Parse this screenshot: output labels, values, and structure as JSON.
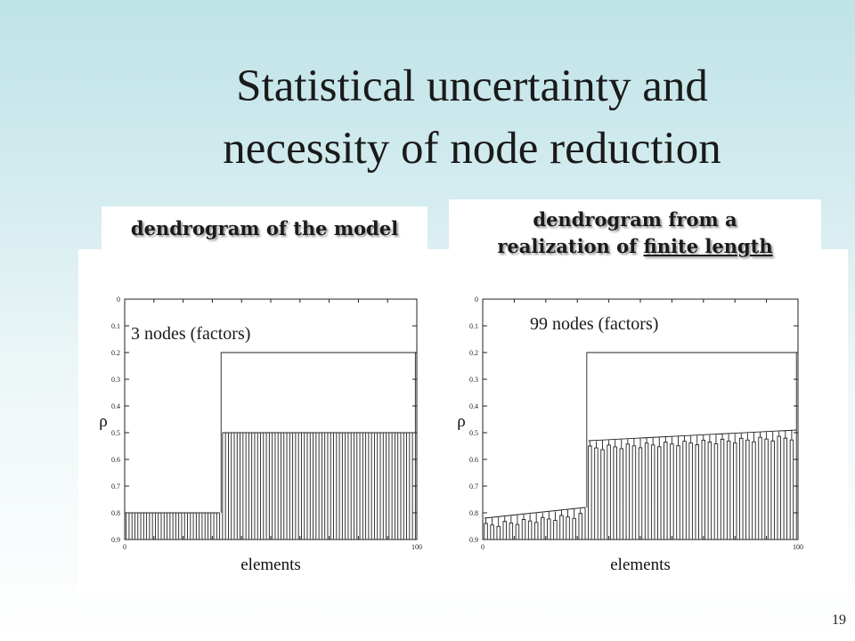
{
  "slide": {
    "title_line1": "Statistical uncertainty and",
    "title_line2": "necessity of node reduction",
    "page_number": "19"
  },
  "panels": {
    "left": {
      "label": "dendrogram of the model",
      "annotation": "3 nodes (factors)"
    },
    "right": {
      "label_line1": "dendrogram from a",
      "label_line2_plain": "realization of ",
      "label_line2_underlined": "finite length",
      "annotation": "99 nodes (factors)"
    }
  },
  "chart_data": [
    {
      "type": "dendrogram",
      "ylabel": "ρ",
      "xlabel": "elements",
      "xlim": [
        0,
        100
      ],
      "ylim": [
        0,
        0.9
      ],
      "y_inverted": true,
      "x_ticks": [
        "0",
        "100"
      ],
      "y_ticks": [
        "0",
        "0.1",
        "0.2",
        "0.3",
        "0.4",
        "0.5",
        "0.6",
        "0.7",
        "0.8",
        "0.9"
      ],
      "clusters": [
        {
          "x_start": 0,
          "x_end": 33,
          "merge_level": 0.8
        },
        {
          "x_start": 33,
          "x_end": 100,
          "merge_level": 0.5
        }
      ],
      "top_merge_level": 0.2,
      "leaf_count": 100
    },
    {
      "type": "dendrogram",
      "ylabel": "ρ",
      "xlabel": "elements",
      "xlim": [
        0,
        100
      ],
      "ylim": [
        0,
        0.9
      ],
      "y_inverted": true,
      "x_ticks": [
        "0",
        "100"
      ],
      "y_ticks": [
        "0",
        "0.1",
        "0.2",
        "0.3",
        "0.4",
        "0.5",
        "0.6",
        "0.7",
        "0.8",
        "0.9"
      ],
      "clusters": [
        {
          "x_start": 0,
          "x_end": 33,
          "merge_level_start": 0.82,
          "merge_level_end": 0.78
        },
        {
          "x_start": 33,
          "x_end": 100,
          "merge_level_start": 0.53,
          "merge_level_end": 0.49
        }
      ],
      "top_merge_level": 0.2,
      "leaf_count": 100
    }
  ]
}
